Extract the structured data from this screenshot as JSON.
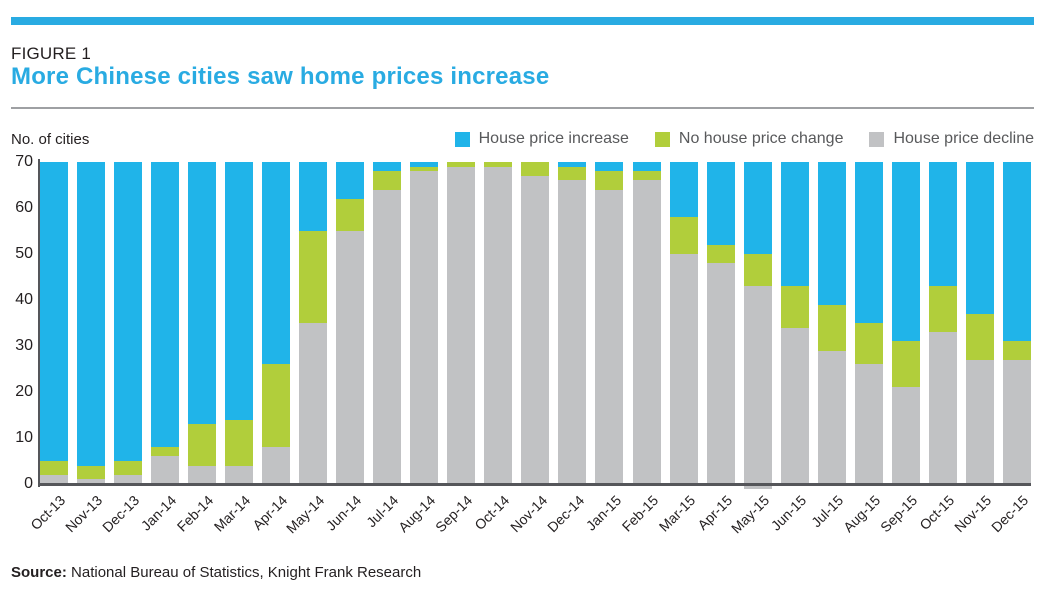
{
  "header": {
    "figure_label": "FIGURE 1",
    "title": "More Chinese cities saw home prices increase",
    "accent_color": "#29ABE2"
  },
  "chart_data": {
    "type": "bar",
    "stacked": true,
    "title": "More Chinese cities saw home prices increase",
    "ylabel": "No. of cities",
    "xlabel": "",
    "ylim": [
      0,
      70
    ],
    "yticks": [
      0,
      10,
      20,
      30,
      40,
      50,
      60,
      70
    ],
    "grid": false,
    "legend_position": "top-right",
    "total_per_month": 70,
    "categories": [
      "Oct-13",
      "Nov-13",
      "Dec-13",
      "Jan-14",
      "Feb-14",
      "Mar-14",
      "Apr-14",
      "May-14",
      "Jun-14",
      "Jul-14",
      "Aug-14",
      "Sep-14",
      "Oct-14",
      "Nov-14",
      "Dec-14",
      "Jan-15",
      "Feb-15",
      "Mar-15",
      "Apr-15",
      "May-15",
      "Jun-15",
      "Jul-15",
      "Aug-15",
      "Sep-15",
      "Oct-15",
      "Nov-15",
      "Dec-15"
    ],
    "series": [
      {
        "name": "House price increase",
        "color": "#20B4E9",
        "values": [
          65,
          66,
          65,
          62,
          57,
          56,
          44,
          15,
          8,
          2,
          1,
          0,
          0,
          0,
          1,
          2,
          2,
          12,
          18,
          20,
          27,
          31,
          35,
          39,
          27,
          33,
          39
        ]
      },
      {
        "name": "No house price change",
        "color": "#B1CE3B",
        "values": [
          3,
          3,
          3,
          2,
          9,
          10,
          18,
          20,
          7,
          4,
          1,
          1,
          1,
          3,
          3,
          4,
          2,
          8,
          4,
          7,
          9,
          10,
          9,
          10,
          10,
          10,
          4
        ]
      },
      {
        "name": "House price decline",
        "color": "#C1C2C4",
        "values": [
          2,
          1,
          2,
          6,
          4,
          4,
          8,
          35,
          55,
          64,
          68,
          69,
          69,
          67,
          66,
          64,
          66,
          50,
          48,
          43,
          34,
          29,
          26,
          21,
          33,
          27,
          27
        ]
      }
    ],
    "stack_order_bottom_to_top": [
      "House price decline",
      "No house price change",
      "House price increase"
    ],
    "artifact_note": "gray segment extends slightly below baseline under May-15 bar",
    "artifact_month": "May-15"
  },
  "axis_colors": {
    "axis_line": "#55565A",
    "tick_text": "#231F20"
  },
  "footer": {
    "source_label": "Source:",
    "source_text": " National Bureau of Statistics, Knight Frank Research"
  }
}
